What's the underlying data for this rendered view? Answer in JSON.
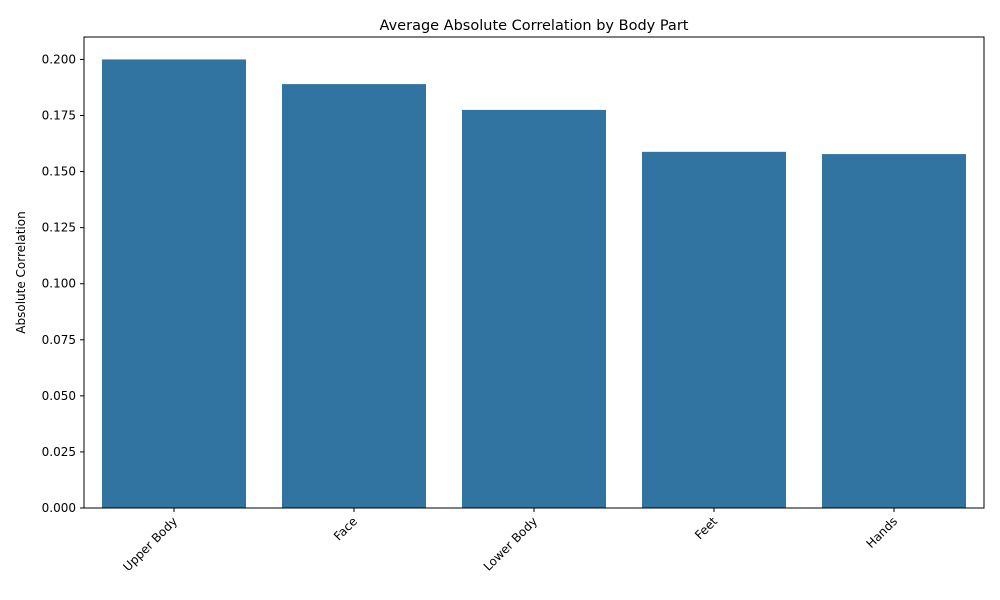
{
  "chart_data": {
    "type": "bar",
    "title": "Average Absolute Correlation by Body Part",
    "xlabel": "",
    "ylabel": "Absolute Correlation",
    "categories": [
      "Upper Body",
      "Face",
      "Lower Body",
      "Feet",
      "Hands"
    ],
    "values": [
      0.2,
      0.189,
      0.1775,
      0.1588,
      0.1578
    ],
    "ylim": [
      0,
      0.21
    ],
    "yticks": [
      "0.000",
      "0.025",
      "0.050",
      "0.075",
      "0.100",
      "0.125",
      "0.150",
      "0.175",
      "0.200"
    ],
    "bar_color": "#3274a1",
    "grid": false,
    "x_tick_rotation": 45
  }
}
